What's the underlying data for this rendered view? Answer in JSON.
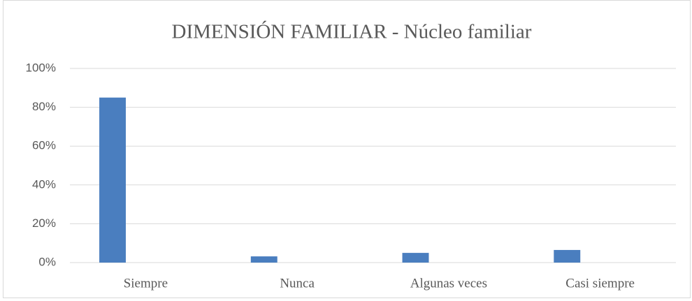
{
  "chart_data": {
    "type": "bar",
    "title": "DIMENSIÓN FAMILIAR - Núcleo familiar",
    "categories": [
      "Siempre",
      "Nunca",
      "Algunas veces",
      "Casi siempre"
    ],
    "values": [
      85,
      3.2,
      5,
      6.5
    ],
    "color": "#4a7ebf",
    "ylim": [
      0,
      100
    ],
    "yticks": [
      {
        "value": 0,
        "label": "0%"
      },
      {
        "value": 20,
        "label": "20%"
      },
      {
        "value": 40,
        "label": "40%"
      },
      {
        "value": 60,
        "label": "60%"
      },
      {
        "value": 80,
        "label": "80%"
      },
      {
        "value": 100,
        "label": "100%"
      }
    ],
    "grid": true
  }
}
